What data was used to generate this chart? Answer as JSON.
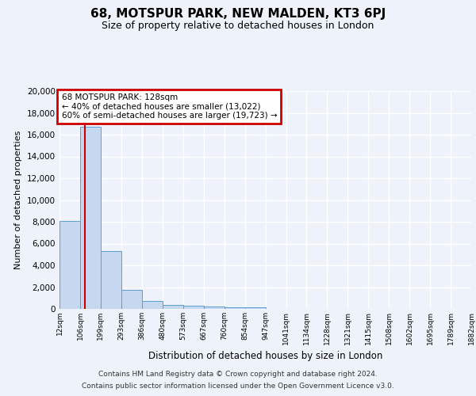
{
  "title": "68, MOTSPUR PARK, NEW MALDEN, KT3 6PJ",
  "subtitle": "Size of property relative to detached houses in London",
  "xlabel": "Distribution of detached houses by size in London",
  "ylabel": "Number of detached properties",
  "footer_line1": "Contains HM Land Registry data © Crown copyright and database right 2024.",
  "footer_line2": "Contains public sector information licensed under the Open Government Licence v3.0.",
  "annotation_title": "68 MOTSPUR PARK: 128sqm",
  "annotation_line1": "← 40% of detached houses are smaller (13,022)",
  "annotation_line2": "60% of semi-detached houses are larger (19,723) →",
  "property_size": 128,
  "bin_edges": [
    12,
    106,
    199,
    293,
    386,
    480,
    573,
    667,
    760,
    854,
    947,
    1041,
    1134,
    1228,
    1321,
    1415,
    1508,
    1602,
    1695,
    1789,
    1882
  ],
  "bar_heights": [
    8100,
    16700,
    5300,
    1750,
    700,
    380,
    280,
    200,
    180,
    130,
    0,
    0,
    0,
    0,
    0,
    0,
    0,
    0,
    0,
    0
  ],
  "bar_color": "#c5d8f0",
  "bar_edge_color": "#5a9fd4",
  "vline_color": "#cc0000",
  "vline_x": 128,
  "ylim": [
    0,
    20000
  ],
  "yticks": [
    0,
    2000,
    4000,
    6000,
    8000,
    10000,
    12000,
    14000,
    16000,
    18000,
    20000
  ],
  "background_color": "#eef2fa",
  "plot_bg_color": "#eef2fa",
  "grid_color": "#ffffff",
  "annotation_box_color": "#ffffff",
  "annotation_box_edge": "#cc0000"
}
